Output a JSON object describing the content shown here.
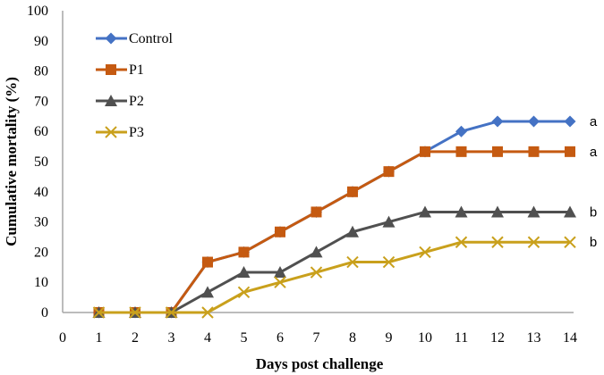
{
  "chart_data": {
    "type": "line",
    "title": "",
    "xlabel": "Days post challenge",
    "ylabel": "Cumulative mortality (%)",
    "xlim": [
      0,
      14
    ],
    "ylim": [
      0,
      100
    ],
    "x_ticks": [
      "0",
      "1",
      "2",
      "3",
      "4",
      "5",
      "6",
      "7",
      "8",
      "9",
      "10",
      "11",
      "12",
      "13",
      "14"
    ],
    "y_ticks": [
      "0",
      "10",
      "20",
      "30",
      "40",
      "50",
      "60",
      "70",
      "80",
      "90",
      "100"
    ],
    "grid": false,
    "legend_position": "top-left",
    "x": [
      1,
      2,
      3,
      4,
      5,
      6,
      7,
      8,
      9,
      10,
      11,
      12,
      13,
      14
    ],
    "series": [
      {
        "name": "Control",
        "color": "#4472C4",
        "marker": "diamond",
        "values": [
          0,
          0,
          0,
          16.7,
          20,
          26.7,
          33.3,
          40,
          46.7,
          53.3,
          60,
          63.3,
          63.3,
          63.3
        ],
        "significance": "a"
      },
      {
        "name": "P1",
        "color": "#C55A11",
        "marker": "square",
        "values": [
          0,
          0,
          0,
          16.7,
          20,
          26.7,
          33.3,
          40,
          46.7,
          53.3,
          53.3,
          53.3,
          53.3,
          53.3
        ],
        "significance": "a"
      },
      {
        "name": "P2",
        "color": "#505050",
        "marker": "triangle",
        "values": [
          0,
          0,
          0,
          6.7,
          13.3,
          13.3,
          20,
          26.7,
          30,
          33.3,
          33.3,
          33.3,
          33.3,
          33.3
        ],
        "significance": "b"
      },
      {
        "name": "P3",
        "color": "#C9A01C",
        "marker": "x",
        "values": [
          0,
          0,
          0,
          0,
          6.7,
          10,
          13.3,
          16.7,
          16.7,
          20,
          23.3,
          23.3,
          23.3,
          23.3
        ],
        "significance": "b"
      }
    ]
  }
}
